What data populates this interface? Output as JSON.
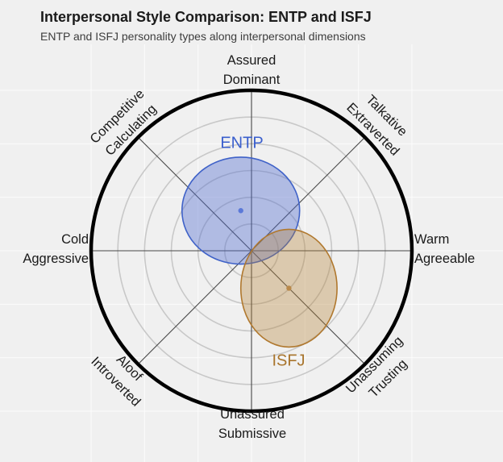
{
  "title": "Interpersonal Style Comparison: ENTP and ISFJ",
  "subtitle": "ENTP and ISFJ personality types along interpersonal dimensions",
  "axis_labels": {
    "top": [
      "Assured",
      "Dominant"
    ],
    "top_right": [
      "Talkative",
      "Extraverted"
    ],
    "right": [
      "Warm",
      "Agreeable"
    ],
    "bottom_right": [
      "Unassuming",
      "Trusting"
    ],
    "bottom": [
      "Unassured",
      "Submissive"
    ],
    "bottom_left": [
      "Aloof",
      "Introverted"
    ],
    "left": [
      "Cold",
      "Aggressive"
    ],
    "top_left": [
      "Competitive",
      "Calculating"
    ]
  },
  "chart_data": {
    "type": "circumplex-ellipse",
    "title": "Interpersonal Style Comparison: ENTP and ISFJ",
    "subtitle": "ENTP and ISFJ personality types along interpersonal dimensions",
    "axis_range": [
      -3,
      3
    ],
    "outer_radius": 3,
    "ring_radii": [
      0.5,
      1,
      1.5,
      2,
      2.5
    ],
    "spoke_angles_deg": [
      0,
      45,
      90,
      135
    ],
    "octant_labels": [
      "Warm Agreeable",
      "Talkative Extraverted",
      "Assured Dominant",
      "Competitive Calculating",
      "Cold Aggressive",
      "Aloof Introverted",
      "Unassured Submissive",
      "Unassuming Trusting"
    ],
    "legend_position": "inline-labels",
    "grid": true,
    "series": [
      {
        "name": "ENTP",
        "center_x": -0.2,
        "center_y": 0.75,
        "radius_x": 1.1,
        "radius_y": 1.0,
        "fill": "rgba(79,107,208,0.40)",
        "stroke": "#3f62c8",
        "dot_color": "#5b79d8",
        "label_color": "#3a5fcd"
      },
      {
        "name": "ISFJ",
        "center_x": 0.7,
        "center_y": -0.7,
        "radius_x": 0.9,
        "radius_y": 1.1,
        "fill": "rgba(181,129,51,0.35)",
        "stroke": "#b0782e",
        "dot_color": "#b9894a",
        "label_color": "#a9752d"
      }
    ],
    "colors": {
      "background": "#f0f0f0",
      "panel_grid": "rgba(255,255,255,0.75)",
      "rings": "#c8c8c8",
      "spokes": "#474747",
      "outer_circle": "#000000"
    }
  }
}
